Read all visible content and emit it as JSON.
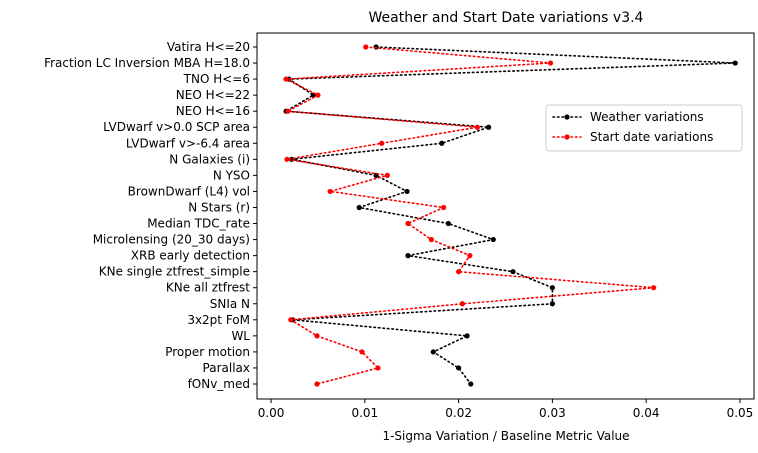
{
  "chart_data": {
    "type": "line",
    "title": "Weather and Start Date variations v3.4",
    "xlabel": "1-Sigma Variation / Baseline Metric Value",
    "ylabel": "",
    "xlim": [
      -0.0015,
      0.0515
    ],
    "xticks": [
      "0.00",
      "0.01",
      "0.02",
      "0.03",
      "0.04",
      "0.05"
    ],
    "xtick_values": [
      0,
      0.01,
      0.02,
      0.03,
      0.04,
      0.05
    ],
    "grid": false,
    "legend_position": "right",
    "categories": [
      "Vatira H<=20",
      "Fraction LC Inversion MBA H=18.0",
      "TNO H<=6",
      "NEO H<=22",
      "NEO H<=16",
      "LVDwarf v>0.0 SCP area",
      "LVDwarf v>-6.4 area",
      "N Galaxies (i)",
      "N YSO",
      "BrownDwarf (L4) vol",
      "N Stars (r)",
      "Median TDC_rate",
      "Microlensing (20_30 days)",
      "XRB early detection",
      "KNe single ztfrest_simple",
      "KNe all ztfrest",
      "SNIa N",
      "3x2pt FoM",
      "WL",
      "Proper motion",
      "Parallax",
      "fONv_med"
    ],
    "series": [
      {
        "name": "Weather variations",
        "color": "#000000",
        "values": [
          0.0112,
          0.0495,
          0.0019,
          0.0045,
          0.0016,
          0.0232,
          0.0182,
          0.0022,
          0.0112,
          0.0145,
          0.0094,
          0.0189,
          0.0237,
          0.0146,
          0.0258,
          0.03,
          0.03,
          0.0023,
          0.0209,
          0.0173,
          0.02,
          0.0213
        ]
      },
      {
        "name": "Start date variations",
        "color": "#ff0000",
        "values": [
          0.0101,
          0.0298,
          0.0016,
          0.005,
          0.0018,
          0.022,
          0.0118,
          0.0017,
          0.0124,
          0.0063,
          0.0184,
          0.0146,
          0.0171,
          0.0212,
          0.02,
          0.0408,
          0.0204,
          0.0021,
          0.0049,
          0.0097,
          0.0114,
          0.0049
        ]
      }
    ]
  }
}
